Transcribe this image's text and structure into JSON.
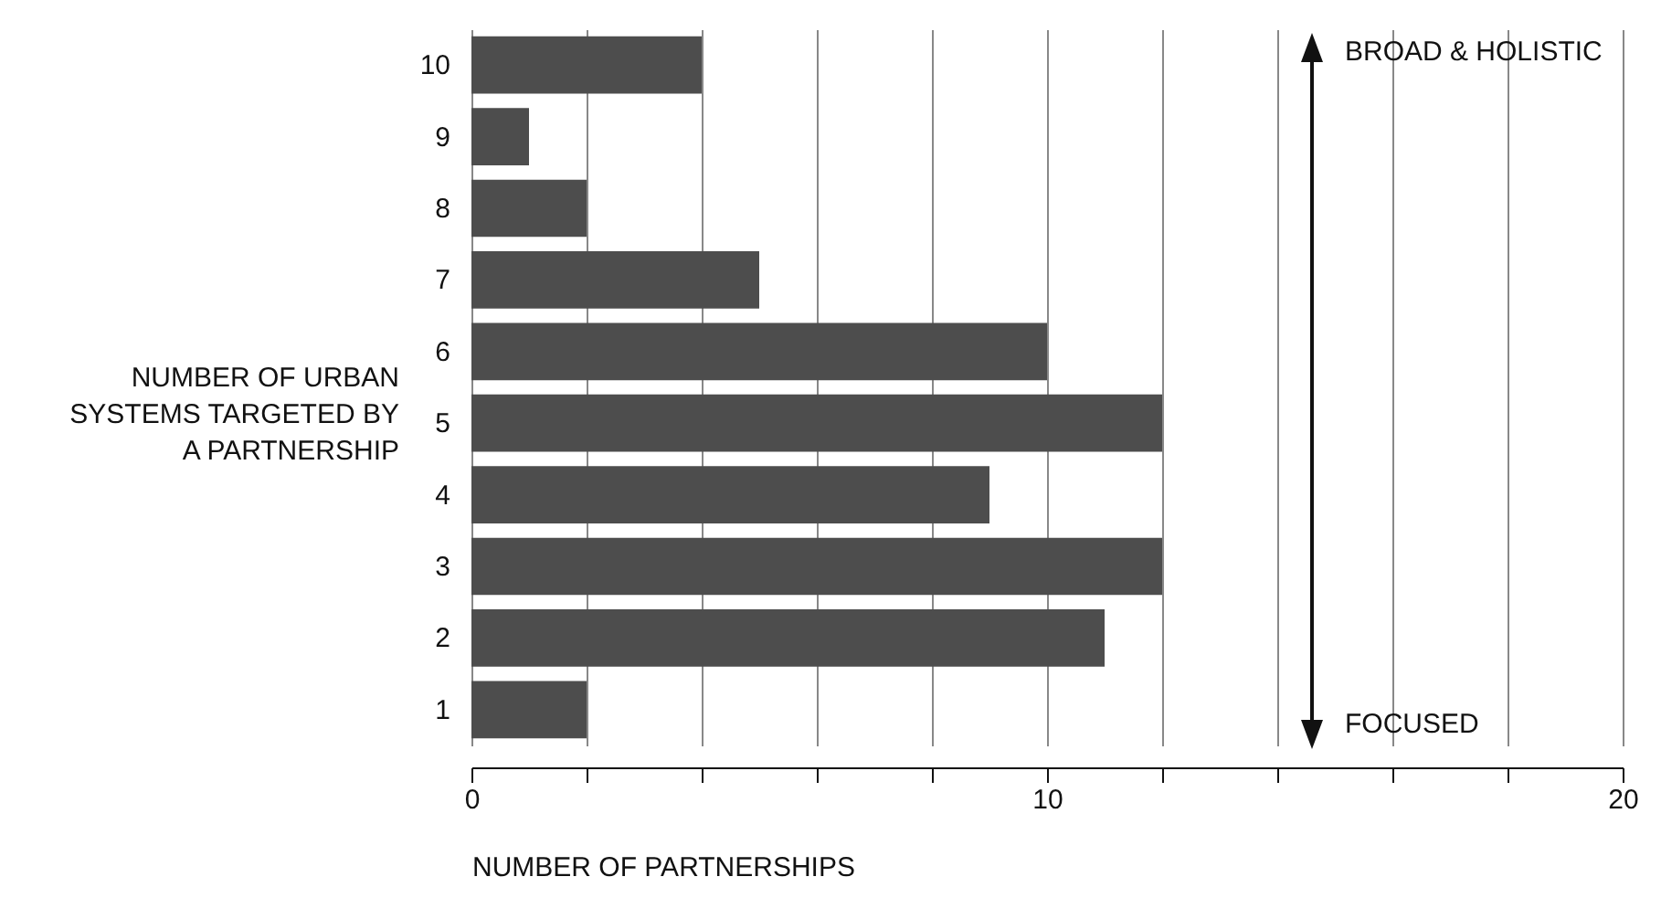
{
  "chart_data": {
    "type": "bar",
    "orientation": "horizontal",
    "xlabel": "NUMBER OF PARTNERSHIPS",
    "ylabel": "NUMBER OF URBAN SYSTEMS TARGETED BY A PARTNERSHIP",
    "categories": [
      "10",
      "9",
      "8",
      "7",
      "6",
      "5",
      "4",
      "3",
      "2",
      "1"
    ],
    "values": [
      4,
      1,
      2,
      5,
      10,
      12,
      9,
      12,
      11,
      2
    ],
    "color": "#4d4d4d",
    "xlim": [
      0,
      20
    ],
    "xticks": [
      0,
      {
        "value": 2,
        "label": null
      },
      {
        "value": 4,
        "label": null
      },
      {
        "value": 6,
        "label": null
      },
      {
        "value": 8,
        "label": null
      },
      10,
      {
        "value": 12,
        "label": null
      },
      {
        "value": 14,
        "label": null
      },
      {
        "value": 16,
        "label": null
      },
      {
        "value": 18,
        "label": null
      },
      20
    ],
    "grid": "x",
    "annotations": [
      "BROAD & HOLISTIC",
      "FOCUSED"
    ]
  }
}
